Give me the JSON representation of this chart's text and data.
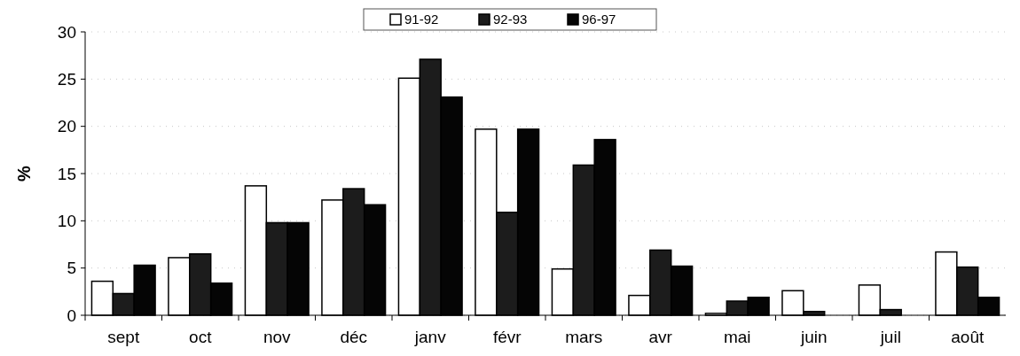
{
  "chart_data": {
    "type": "bar",
    "ylabel": "%",
    "categories": [
      "sept",
      "oct",
      "nov",
      "déc",
      "janv",
      "févr",
      "mars",
      "avr",
      "mai",
      "juin",
      "juil",
      "août"
    ],
    "series": [
      {
        "name": "91-92",
        "color": "#ffffff",
        "values": [
          3.6,
          6.1,
          13.7,
          12.2,
          25.1,
          19.7,
          4.9,
          2.1,
          0.2,
          2.6,
          3.2,
          6.7
        ]
      },
      {
        "name": "92-93",
        "color": "#1c1c1c",
        "values": [
          2.3,
          6.5,
          9.8,
          13.4,
          27.1,
          10.9,
          15.9,
          6.9,
          1.5,
          0.4,
          0.6,
          5.1
        ]
      },
      {
        "name": "96-97",
        "color": "#050505",
        "values": [
          5.3,
          3.4,
          9.8,
          11.7,
          23.1,
          19.7,
          18.6,
          5.2,
          1.9,
          0,
          0,
          1.9
        ]
      }
    ],
    "ylim": [
      0,
      30
    ],
    "yticks": [
      0,
      5,
      10,
      15,
      20,
      25,
      30
    ],
    "grid": "y",
    "legend": "top"
  }
}
